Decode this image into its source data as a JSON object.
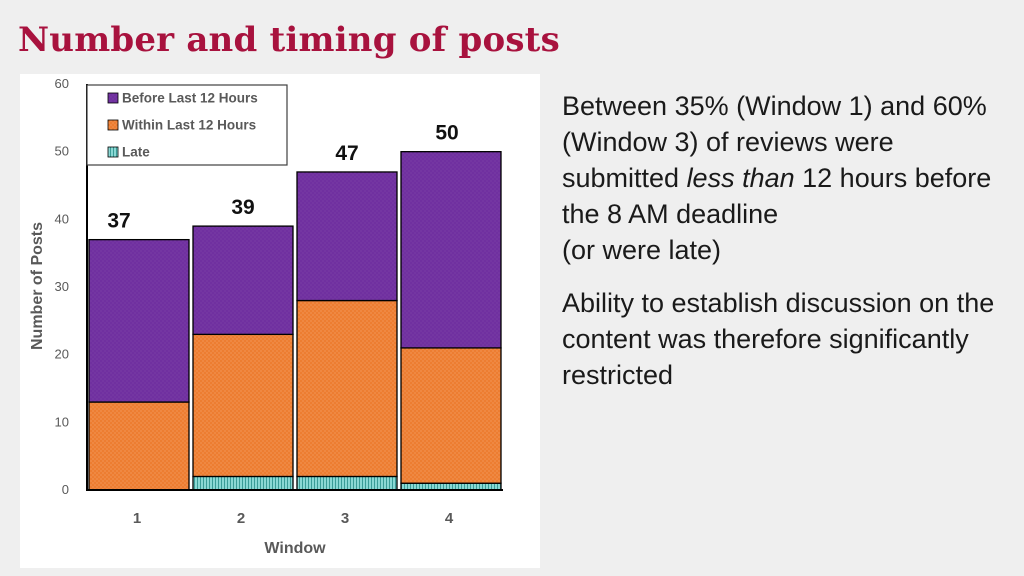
{
  "slide": {
    "title": "Number and timing of posts"
  },
  "notes": {
    "paragraph1_part1": "Between 35% (Window 1) and 60% (Window 3) of reviews were submitted ",
    "paragraph1_emphasis": "less than",
    "paragraph1_part2": " 12 hours before the 8 AM deadline",
    "paragraph1_part3": "(or were late)",
    "paragraph2": "Ability to establish discussion on the content was therefore significantly restricted"
  },
  "chart_data": {
    "type": "bar",
    "stacked": true,
    "categories": [
      "1",
      "2",
      "3",
      "4"
    ],
    "series": [
      {
        "name": "Late",
        "values": [
          0,
          2,
          2,
          1
        ],
        "color": "#7fd3cf"
      },
      {
        "name": "Within Last 12 Hours",
        "values": [
          13,
          21,
          26,
          20
        ],
        "color": "#ed7d31"
      },
      {
        "name": "Before Last 12 Hours",
        "values": [
          24,
          16,
          19,
          29
        ],
        "color": "#7030a0"
      }
    ],
    "totals": [
      37,
      39,
      47,
      50
    ],
    "legend_order": [
      "Before Last 12 Hours",
      "Within Last 12 Hours",
      "Late"
    ],
    "legend_position": "top-left",
    "xlabel": "Window",
    "ylabel": "Number of Posts",
    "ylim": [
      0,
      60
    ],
    "yticks": [
      0,
      10,
      20,
      30,
      40,
      50,
      60
    ],
    "grid": false
  }
}
